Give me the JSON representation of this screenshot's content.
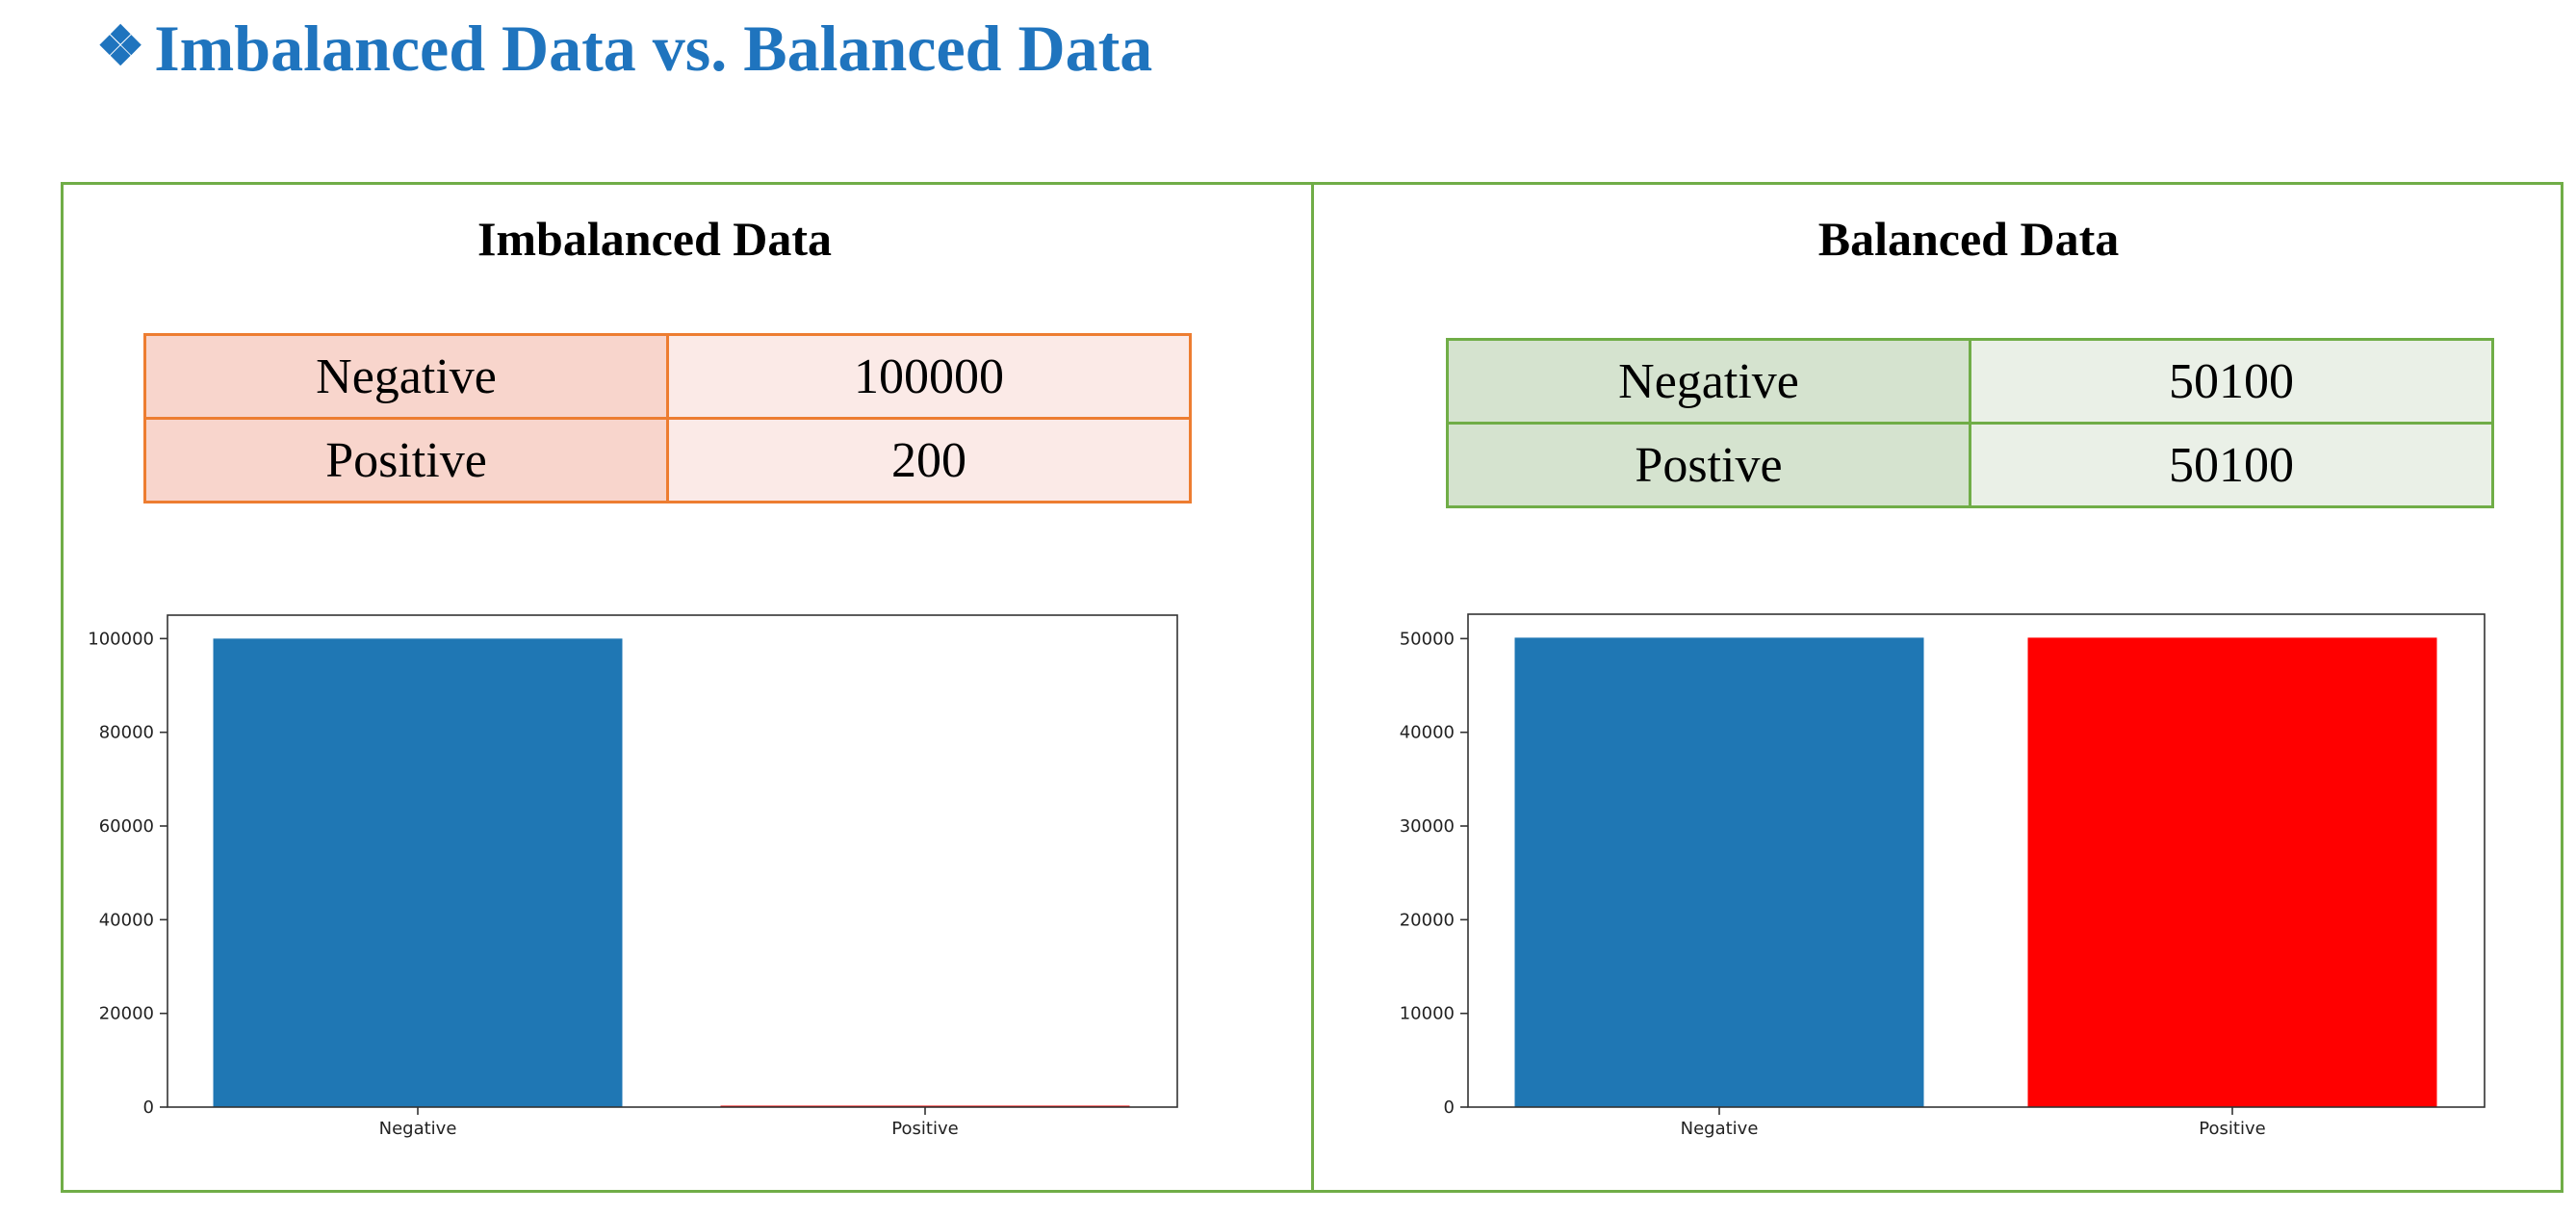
{
  "page": {
    "title": "Imbalanced Data vs. Balanced Data",
    "bullet": "❖"
  },
  "left_panel": {
    "title": "Imbalanced Data",
    "table": [
      {
        "label": "Negative",
        "value": "100000"
      },
      {
        "label": "Positive",
        "value": "200"
      }
    ]
  },
  "right_panel": {
    "title": "Balanced Data",
    "table": [
      {
        "label": "Negative",
        "value": "50100"
      },
      {
        "label": "Postive",
        "value": "50100"
      }
    ]
  },
  "chart_data": [
    {
      "type": "bar",
      "categories": [
        "Negative",
        "Positive"
      ],
      "values": [
        100000,
        200
      ],
      "colors": [
        "#1F77B4",
        "#FF0000"
      ],
      "ylim": [
        0,
        105000
      ],
      "yticks": [
        0,
        20000,
        40000,
        60000,
        80000,
        100000
      ],
      "title": "",
      "xlabel": "",
      "ylabel": "",
      "grid": false
    },
    {
      "type": "bar",
      "categories": [
        "Negative",
        "Positive"
      ],
      "values": [
        50100,
        50100
      ],
      "colors": [
        "#1F77B4",
        "#FF0000"
      ],
      "ylim": [
        0,
        52605
      ],
      "yticks": [
        0,
        10000,
        20000,
        30000,
        40000,
        50000
      ],
      "title": "",
      "xlabel": "",
      "ylabel": "",
      "grid": false
    }
  ]
}
